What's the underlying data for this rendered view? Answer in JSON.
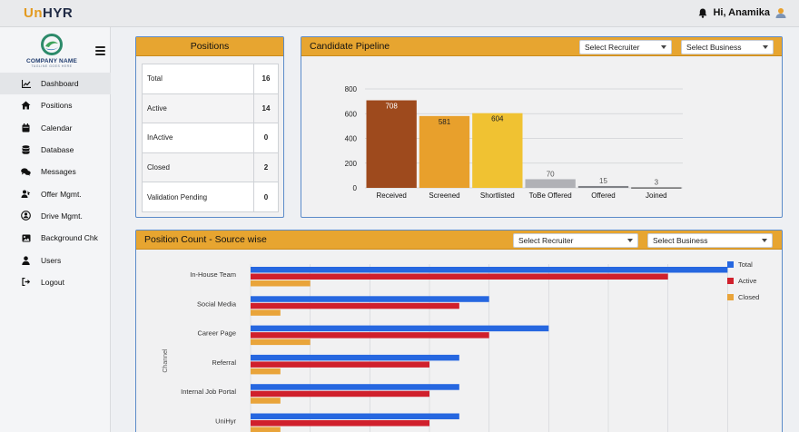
{
  "header": {
    "logo_u": "Un",
    "logo_rest": "HYR",
    "greeting": "Hi, Anamika",
    "icons": {
      "bell": "bell-icon",
      "user": "user-icon"
    }
  },
  "sidebar": {
    "brand_name": "COMPANY NAME",
    "brand_tagline": "TAGLINE GOES HERE",
    "items": [
      {
        "label": "Dashboard",
        "icon": "chart-line-icon",
        "active": true
      },
      {
        "label": "Positions",
        "icon": "home-icon"
      },
      {
        "label": "Calendar",
        "icon": "calendar-icon"
      },
      {
        "label": "Database",
        "icon": "database-icon"
      },
      {
        "label": "Messages",
        "icon": "messages-icon"
      },
      {
        "label": "Offer Mgmt.",
        "icon": "offer-icon"
      },
      {
        "label": "Drive Mgmt.",
        "icon": "drive-icon"
      },
      {
        "label": "Background Chk",
        "icon": "image-icon"
      },
      {
        "label": "Users",
        "icon": "user-icon"
      },
      {
        "label": "Logout",
        "icon": "logout-icon"
      }
    ]
  },
  "positions": {
    "title": "Positions",
    "rows": [
      {
        "label": "Total",
        "value": "16"
      },
      {
        "label": "Active",
        "value": "14"
      },
      {
        "label": "InActive",
        "value": "0"
      },
      {
        "label": "Closed",
        "value": "2"
      },
      {
        "label": "Validation Pending",
        "value": "0"
      }
    ]
  },
  "pipeline": {
    "title": "Candidate Pipeline",
    "select_recruiter": "Select Recruiter",
    "select_business": "Select Business"
  },
  "source": {
    "title": "Position Count - Source wise",
    "select_recruiter": "Select Recruiter",
    "select_business": "Select Business"
  },
  "chart_data": [
    {
      "type": "bar",
      "categories": [
        "Received",
        "Screened",
        "Shortlisted",
        "ToBe Offered",
        "Offered",
        "Joined"
      ],
      "values": [
        708,
        581,
        604,
        70,
        15,
        3
      ],
      "colors": [
        "#9e4a1d",
        "#e8a02c",
        "#f0c232",
        "#b0b1b6",
        "#7f8186",
        "#2a2a2a"
      ],
      "yticks": [
        0,
        200,
        400,
        600,
        800
      ],
      "ylim": [
        0,
        800
      ],
      "grid": true
    },
    {
      "type": "bar",
      "orientation": "horizontal",
      "ylabel": "Channel",
      "categories": [
        "In-House Team",
        "Social Media",
        "Career Page",
        "Referral",
        "Internal Job Portal",
        "UniHyr"
      ],
      "series": [
        {
          "name": "Total",
          "color": "#2667e0",
          "values": [
            16,
            8,
            10,
            7,
            7,
            7
          ]
        },
        {
          "name": "Active",
          "color": "#d0202c",
          "values": [
            14,
            7,
            8,
            6,
            6,
            6
          ]
        },
        {
          "name": "Closed",
          "color": "#e9a43a",
          "values": [
            2,
            1,
            2,
            1,
            1,
            1
          ]
        }
      ],
      "xlim": [
        0,
        18
      ],
      "legend": "right",
      "grid": true
    }
  ]
}
